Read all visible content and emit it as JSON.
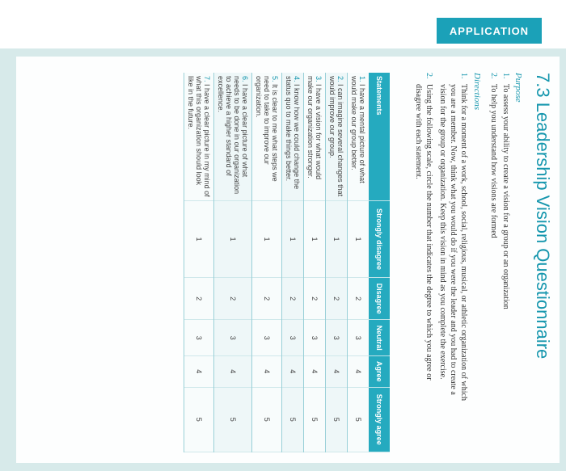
{
  "header": {
    "tab_label": "APPLICATION"
  },
  "doc": {
    "title": "7.3 Leadership Vision Questionnaire",
    "purpose_heading": "Purpose",
    "purpose": [
      {
        "n": "1.",
        "text": "To assess your ability to create a vision for a group or an organization"
      },
      {
        "n": "2.",
        "text": "To help you understand how visions are formed"
      }
    ],
    "directions_heading": "Directions",
    "directions_lines": [
      {
        "n": "1.",
        "text": "Think for a moment of a work, school, social, religious, musical, or athletic organization of which"
      },
      {
        "n": "",
        "text": "you are a member. Now, think what you would do if you were the leader and you had to create a"
      },
      {
        "n": "",
        "text": "vision for the group or organization. Keep this vision in mind as you complete the exercise."
      },
      {
        "n": "2.",
        "text": "Using the following scale, circle the number that indicates the degree to which you agree or"
      },
      {
        "n": "",
        "text": "disagree with each statement."
      }
    ]
  },
  "table": {
    "headers": [
      "Statements",
      "Strongly disagree",
      "Disagree",
      "Neutral",
      "Agree",
      "Strongly agree"
    ],
    "rows": [
      {
        "n": "1.",
        "text": "I have a mental picture of what would make our group better.",
        "scale": [
          "1",
          "2",
          "3",
          "4",
          "5"
        ]
      },
      {
        "n": "2.",
        "text": "I can imagine several changes that would improve our group.",
        "scale": [
          "1",
          "2",
          "3",
          "4",
          "5"
        ]
      },
      {
        "n": "3.",
        "text": "I have a vision for what would make our organization stronger.",
        "scale": [
          "1",
          "2",
          "3",
          "4",
          "5"
        ]
      },
      {
        "n": "4.",
        "text": "I know how we could change the status quo to make things better.",
        "scale": [
          "1",
          "2",
          "3",
          "4",
          "5"
        ]
      },
      {
        "n": "5.",
        "text": "It is clear to me what steps we need to take to improve our organization.",
        "scale": [
          "1",
          "2",
          "3",
          "4",
          "5"
        ]
      },
      {
        "n": "6.",
        "text": "I have a clear picture of what needs to be done in our organization to achieve a higher standard of excellence.",
        "scale": [
          "1",
          "2",
          "3",
          "4",
          "5"
        ]
      },
      {
        "n": "7.",
        "text": "I have a clear picture in my mind of what this organization should look like in the future.",
        "scale": [
          "1",
          "2",
          "3",
          "4",
          "5"
        ]
      }
    ]
  }
}
